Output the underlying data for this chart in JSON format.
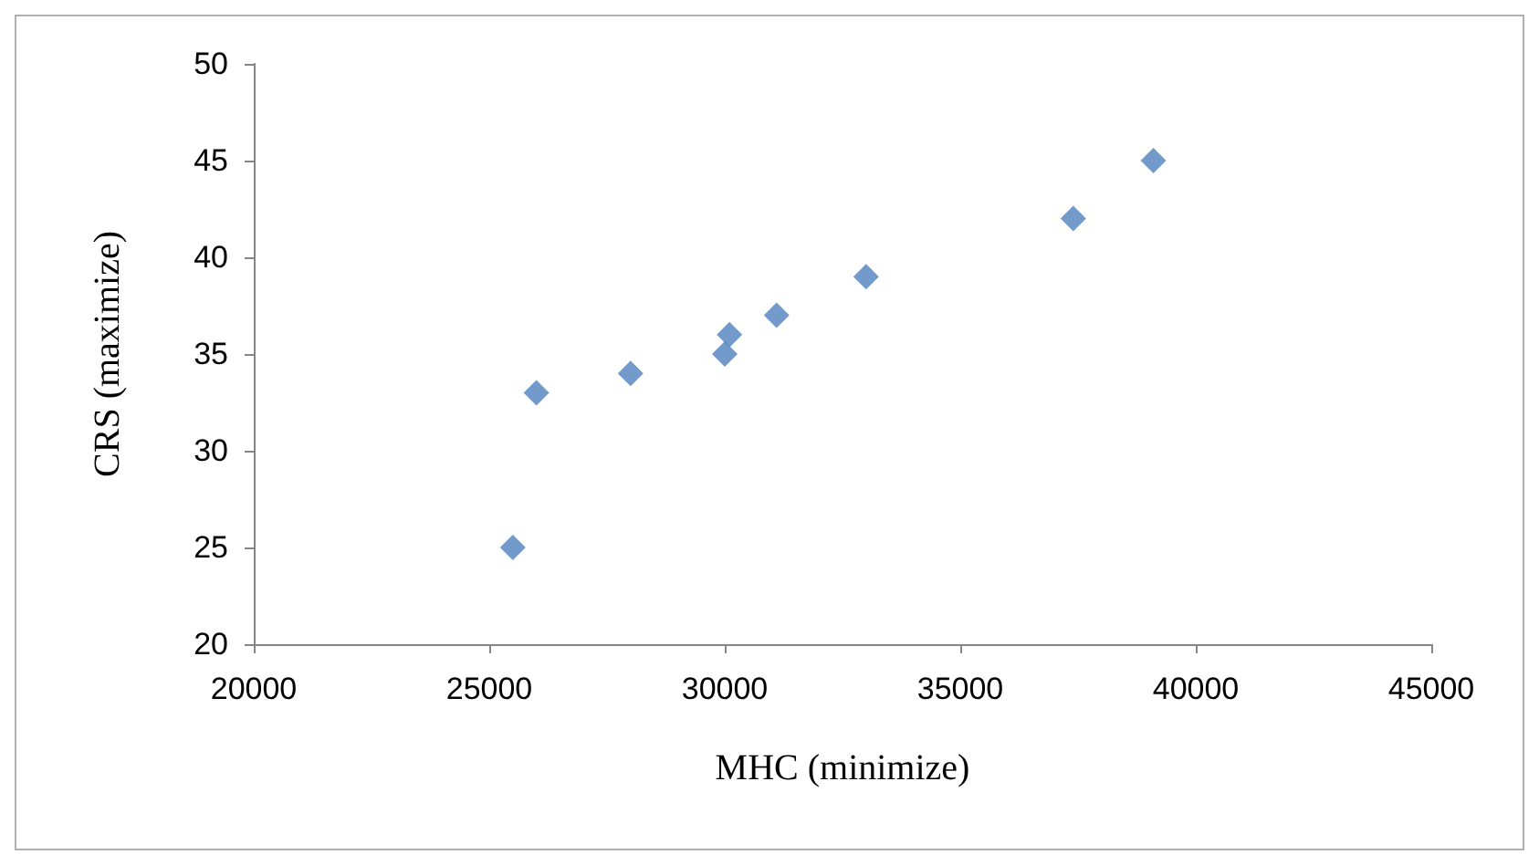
{
  "chart_data": {
    "type": "scatter",
    "xlabel": "MHC (minimize)",
    "ylabel": "CRS (maximize)",
    "x": [
      25500,
      26000,
      28000,
      30000,
      30100,
      31100,
      33000,
      37400,
      39100
    ],
    "values": [
      25,
      33,
      34,
      35,
      36,
      37,
      39,
      42,
      45
    ],
    "color": "#4f81bd",
    "marker": "diamond",
    "xlim": [
      20000,
      45000
    ],
    "xticks": [
      20000,
      25000,
      30000,
      35000,
      40000,
      45000
    ],
    "ylim": [
      20,
      50
    ],
    "yticks": [
      20,
      25,
      30,
      35,
      40,
      45,
      50
    ],
    "grid": false
  }
}
